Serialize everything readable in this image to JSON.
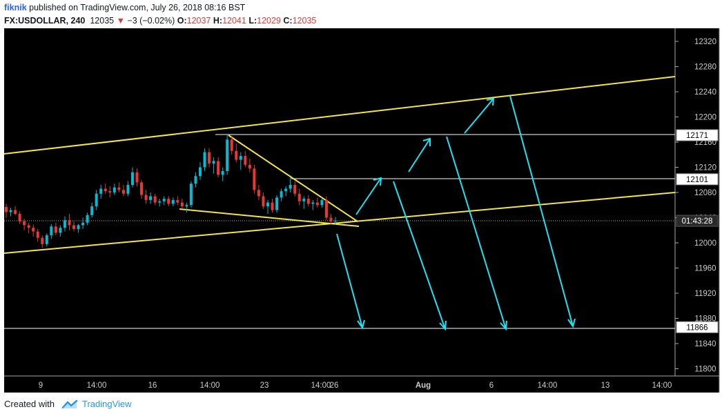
{
  "header": {
    "author": "fiknik",
    "published_text": " published on TradingView.com, July 26, 2018 08:16 BST",
    "symbol": "FX:USDOLLAR, 240",
    "last": "12035",
    "change": "−3 (−0.02%)",
    "o_label": "O:",
    "o_value": "12037",
    "h_label": "H:",
    "h_value": "12041",
    "l_label": "L:",
    "l_value": "12029",
    "c_label": "C:",
    "c_value": "12035",
    "down_color": "#e53935"
  },
  "price_axis": {
    "ticks": [
      "12320",
      "12280",
      "12240",
      "12200",
      "12160",
      "12120",
      "12080",
      "12040",
      "12000",
      "11960",
      "11920",
      "11880",
      "11840",
      "11800"
    ],
    "labels": [
      {
        "text": "12171",
        "value": 12171
      },
      {
        "text": "12101",
        "value": 12101
      },
      {
        "text": "01:43:28",
        "value": 12035
      },
      {
        "text": "11866",
        "value": 11866
      }
    ]
  },
  "time_axis": {
    "ticks": [
      "9",
      "14:00",
      "16",
      "14:00",
      "23",
      "14:00",
      "26",
      "Aug",
      "6",
      "14:00",
      "13",
      "14:00"
    ]
  },
  "chart_data": {
    "type": "candlestick",
    "symbol": "FX:USDOLLAR",
    "interval": "240",
    "ylim": [
      11780,
      12340
    ],
    "up_color": "#00bcd4",
    "down_color": "#e53935",
    "candles": [
      [
        12057,
        12062,
        12040,
        12049
      ],
      [
        12049,
        12056,
        12042,
        12052
      ],
      [
        12052,
        12058,
        12044,
        12046
      ],
      [
        12046,
        12050,
        12030,
        12034
      ],
      [
        12034,
        12038,
        12020,
        12028
      ],
      [
        12028,
        12032,
        12015,
        12024
      ],
      [
        12024,
        12029,
        12010,
        12018
      ],
      [
        12018,
        12022,
        12002,
        12008
      ],
      [
        12008,
        12012,
        11992,
        11998
      ],
      [
        11998,
        12015,
        11994,
        12012
      ],
      [
        12012,
        12030,
        12006,
        12026
      ],
      [
        12026,
        12032,
        12012,
        12016
      ],
      [
        12016,
        12028,
        12010,
        12024
      ],
      [
        12024,
        12042,
        12018,
        12036
      ],
      [
        12036,
        12046,
        12020,
        12028
      ],
      [
        12028,
        12034,
        12018,
        12022
      ],
      [
        12022,
        12030,
        12016,
        12028
      ],
      [
        12028,
        12040,
        12022,
        12032
      ],
      [
        12032,
        12048,
        12028,
        12044
      ],
      [
        12044,
        12064,
        12040,
        12058
      ],
      [
        12058,
        12084,
        12052,
        12078
      ],
      [
        12078,
        12092,
        12070,
        12086
      ],
      [
        12086,
        12094,
        12078,
        12082
      ],
      [
        12082,
        12090,
        12072,
        12080
      ],
      [
        12080,
        12094,
        12076,
        12088
      ],
      [
        12088,
        12096,
        12080,
        12084
      ],
      [
        12084,
        12092,
        12074,
        12078
      ],
      [
        12078,
        12098,
        12074,
        12092
      ],
      [
        12092,
        12120,
        12088,
        12112
      ],
      [
        12112,
        12118,
        12090,
        12096
      ],
      [
        12096,
        12100,
        12070,
        12076
      ],
      [
        12076,
        12084,
        12062,
        12068
      ],
      [
        12068,
        12080,
        12062,
        12074
      ],
      [
        12074,
        12078,
        12060,
        12064
      ],
      [
        12064,
        12070,
        12058,
        12066
      ],
      [
        12066,
        12074,
        12060,
        12070
      ],
      [
        12070,
        12074,
        12058,
        12062
      ],
      [
        12062,
        12072,
        12058,
        12068
      ],
      [
        12068,
        12074,
        12060,
        12064
      ],
      [
        12064,
        12070,
        12054,
        12058
      ],
      [
        12058,
        12064,
        12048,
        12060
      ],
      [
        12060,
        12098,
        12056,
        12094
      ],
      [
        12094,
        12112,
        12088,
        12106
      ],
      [
        12106,
        12128,
        12100,
        12120
      ],
      [
        12120,
        12150,
        12114,
        12144
      ],
      [
        12144,
        12150,
        12120,
        12126
      ],
      [
        12126,
        12136,
        12110,
        12130
      ],
      [
        12130,
        12136,
        12104,
        12108
      ],
      [
        12108,
        12120,
        12098,
        12114
      ],
      [
        12114,
        12172,
        12108,
        12164
      ],
      [
        12164,
        12170,
        12140,
        12146
      ],
      [
        12146,
        12158,
        12128,
        12132
      ],
      [
        12132,
        12144,
        12116,
        12138
      ],
      [
        12138,
        12146,
        12120,
        12124
      ],
      [
        12124,
        12134,
        12112,
        12118
      ],
      [
        12118,
        12124,
        12078,
        12084
      ],
      [
        12084,
        12092,
        12068,
        12074
      ],
      [
        12074,
        12080,
        12054,
        12058
      ],
      [
        12058,
        12068,
        12046,
        12064
      ],
      [
        12064,
        12070,
        12048,
        12052
      ],
      [
        12052,
        12076,
        12048,
        12072
      ],
      [
        12072,
        12086,
        12066,
        12082
      ],
      [
        12082,
        12090,
        12074,
        12086
      ],
      [
        12086,
        12104,
        12080,
        12092
      ],
      [
        12092,
        12098,
        12074,
        12078
      ],
      [
        12078,
        12086,
        12060,
        12066
      ],
      [
        12066,
        12074,
        12054,
        12070
      ],
      [
        12070,
        12076,
        12058,
        12062
      ],
      [
        12062,
        12068,
        12052,
        12064
      ],
      [
        12064,
        12072,
        12056,
        12060
      ],
      [
        12060,
        12072,
        12056,
        12068
      ],
      [
        12068,
        12074,
        12036,
        12040
      ],
      [
        12040,
        12046,
        12030,
        12034
      ],
      [
        12034,
        12041,
        12029,
        12035
      ]
    ]
  },
  "footer": {
    "created_with": "Created with",
    "brand": "TradingView"
  }
}
